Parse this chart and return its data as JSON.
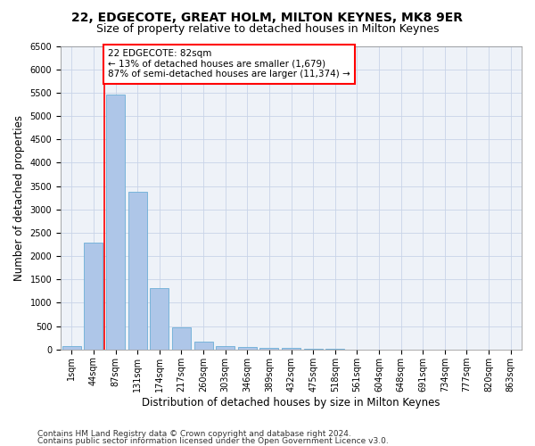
{
  "title1": "22, EDGECOTE, GREAT HOLM, MILTON KEYNES, MK8 9ER",
  "title2": "Size of property relative to detached houses in Milton Keynes",
  "xlabel": "Distribution of detached houses by size in Milton Keynes",
  "ylabel": "Number of detached properties",
  "categories": [
    "1sqm",
    "44sqm",
    "87sqm",
    "131sqm",
    "174sqm",
    "217sqm",
    "260sqm",
    "303sqm",
    "346sqm",
    "389sqm",
    "432sqm",
    "475sqm",
    "518sqm",
    "561sqm",
    "604sqm",
    "648sqm",
    "691sqm",
    "734sqm",
    "777sqm",
    "820sqm",
    "863sqm"
  ],
  "values": [
    70,
    2280,
    5450,
    3380,
    1310,
    480,
    165,
    80,
    50,
    40,
    30,
    20,
    10,
    5,
    3,
    2,
    2,
    1,
    1,
    1,
    1
  ],
  "bar_color": "#aec6e8",
  "bar_edge_color": "#6baed6",
  "vline_x_index": 2,
  "vline_color": "red",
  "annotation_text": "22 EDGECOTE: 82sqm\n← 13% of detached houses are smaller (1,679)\n87% of semi-detached houses are larger (11,374) →",
  "annotation_box_color": "white",
  "annotation_box_edge_color": "red",
  "ylim": [
    0,
    6500
  ],
  "yticks": [
    0,
    500,
    1000,
    1500,
    2000,
    2500,
    3000,
    3500,
    4000,
    4500,
    5000,
    5500,
    6000,
    6500
  ],
  "footer1": "Contains HM Land Registry data © Crown copyright and database right 2024.",
  "footer2": "Contains public sector information licensed under the Open Government Licence v3.0.",
  "bg_color": "#eef2f8",
  "grid_color": "#c8d4e8",
  "title1_fontsize": 10,
  "title2_fontsize": 9,
  "xlabel_fontsize": 8.5,
  "ylabel_fontsize": 8.5,
  "tick_fontsize": 7,
  "footer_fontsize": 6.5,
  "ann_fontsize": 7.5
}
